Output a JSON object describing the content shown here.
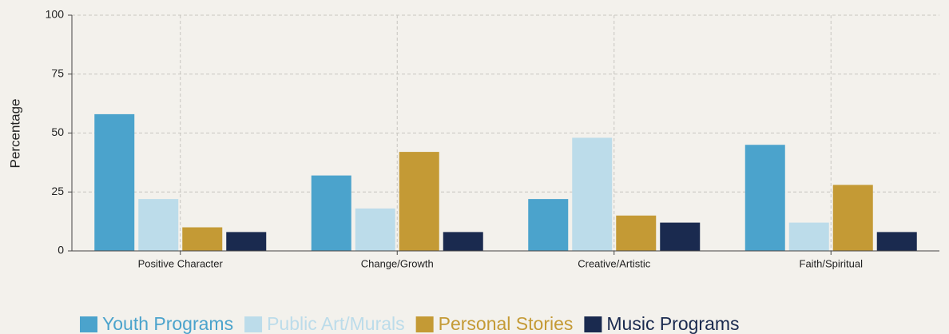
{
  "chart_data": {
    "type": "bar",
    "y_label": "Percentage",
    "categories": [
      "Positive Character",
      "Change/Growth",
      "Creative/Artistic",
      "Faith/Spiritual"
    ],
    "series": [
      {
        "name": "Youth Programs",
        "color": "#4ba3cc",
        "values": [
          58,
          32,
          22,
          45
        ]
      },
      {
        "name": "Public Art/Murals",
        "color": "#bcdcea",
        "values": [
          22,
          18,
          48,
          12
        ]
      },
      {
        "name": "Personal Stories",
        "color": "#c49a35",
        "values": [
          10,
          42,
          15,
          28
        ]
      },
      {
        "name": "Music Programs",
        "color": "#1a2a4f",
        "values": [
          8,
          8,
          12,
          8
        ]
      }
    ],
    "ylim": [
      0,
      100
    ],
    "yticks": [
      0,
      25,
      50,
      75,
      100
    ],
    "grid": true,
    "legend": "bottom"
  }
}
